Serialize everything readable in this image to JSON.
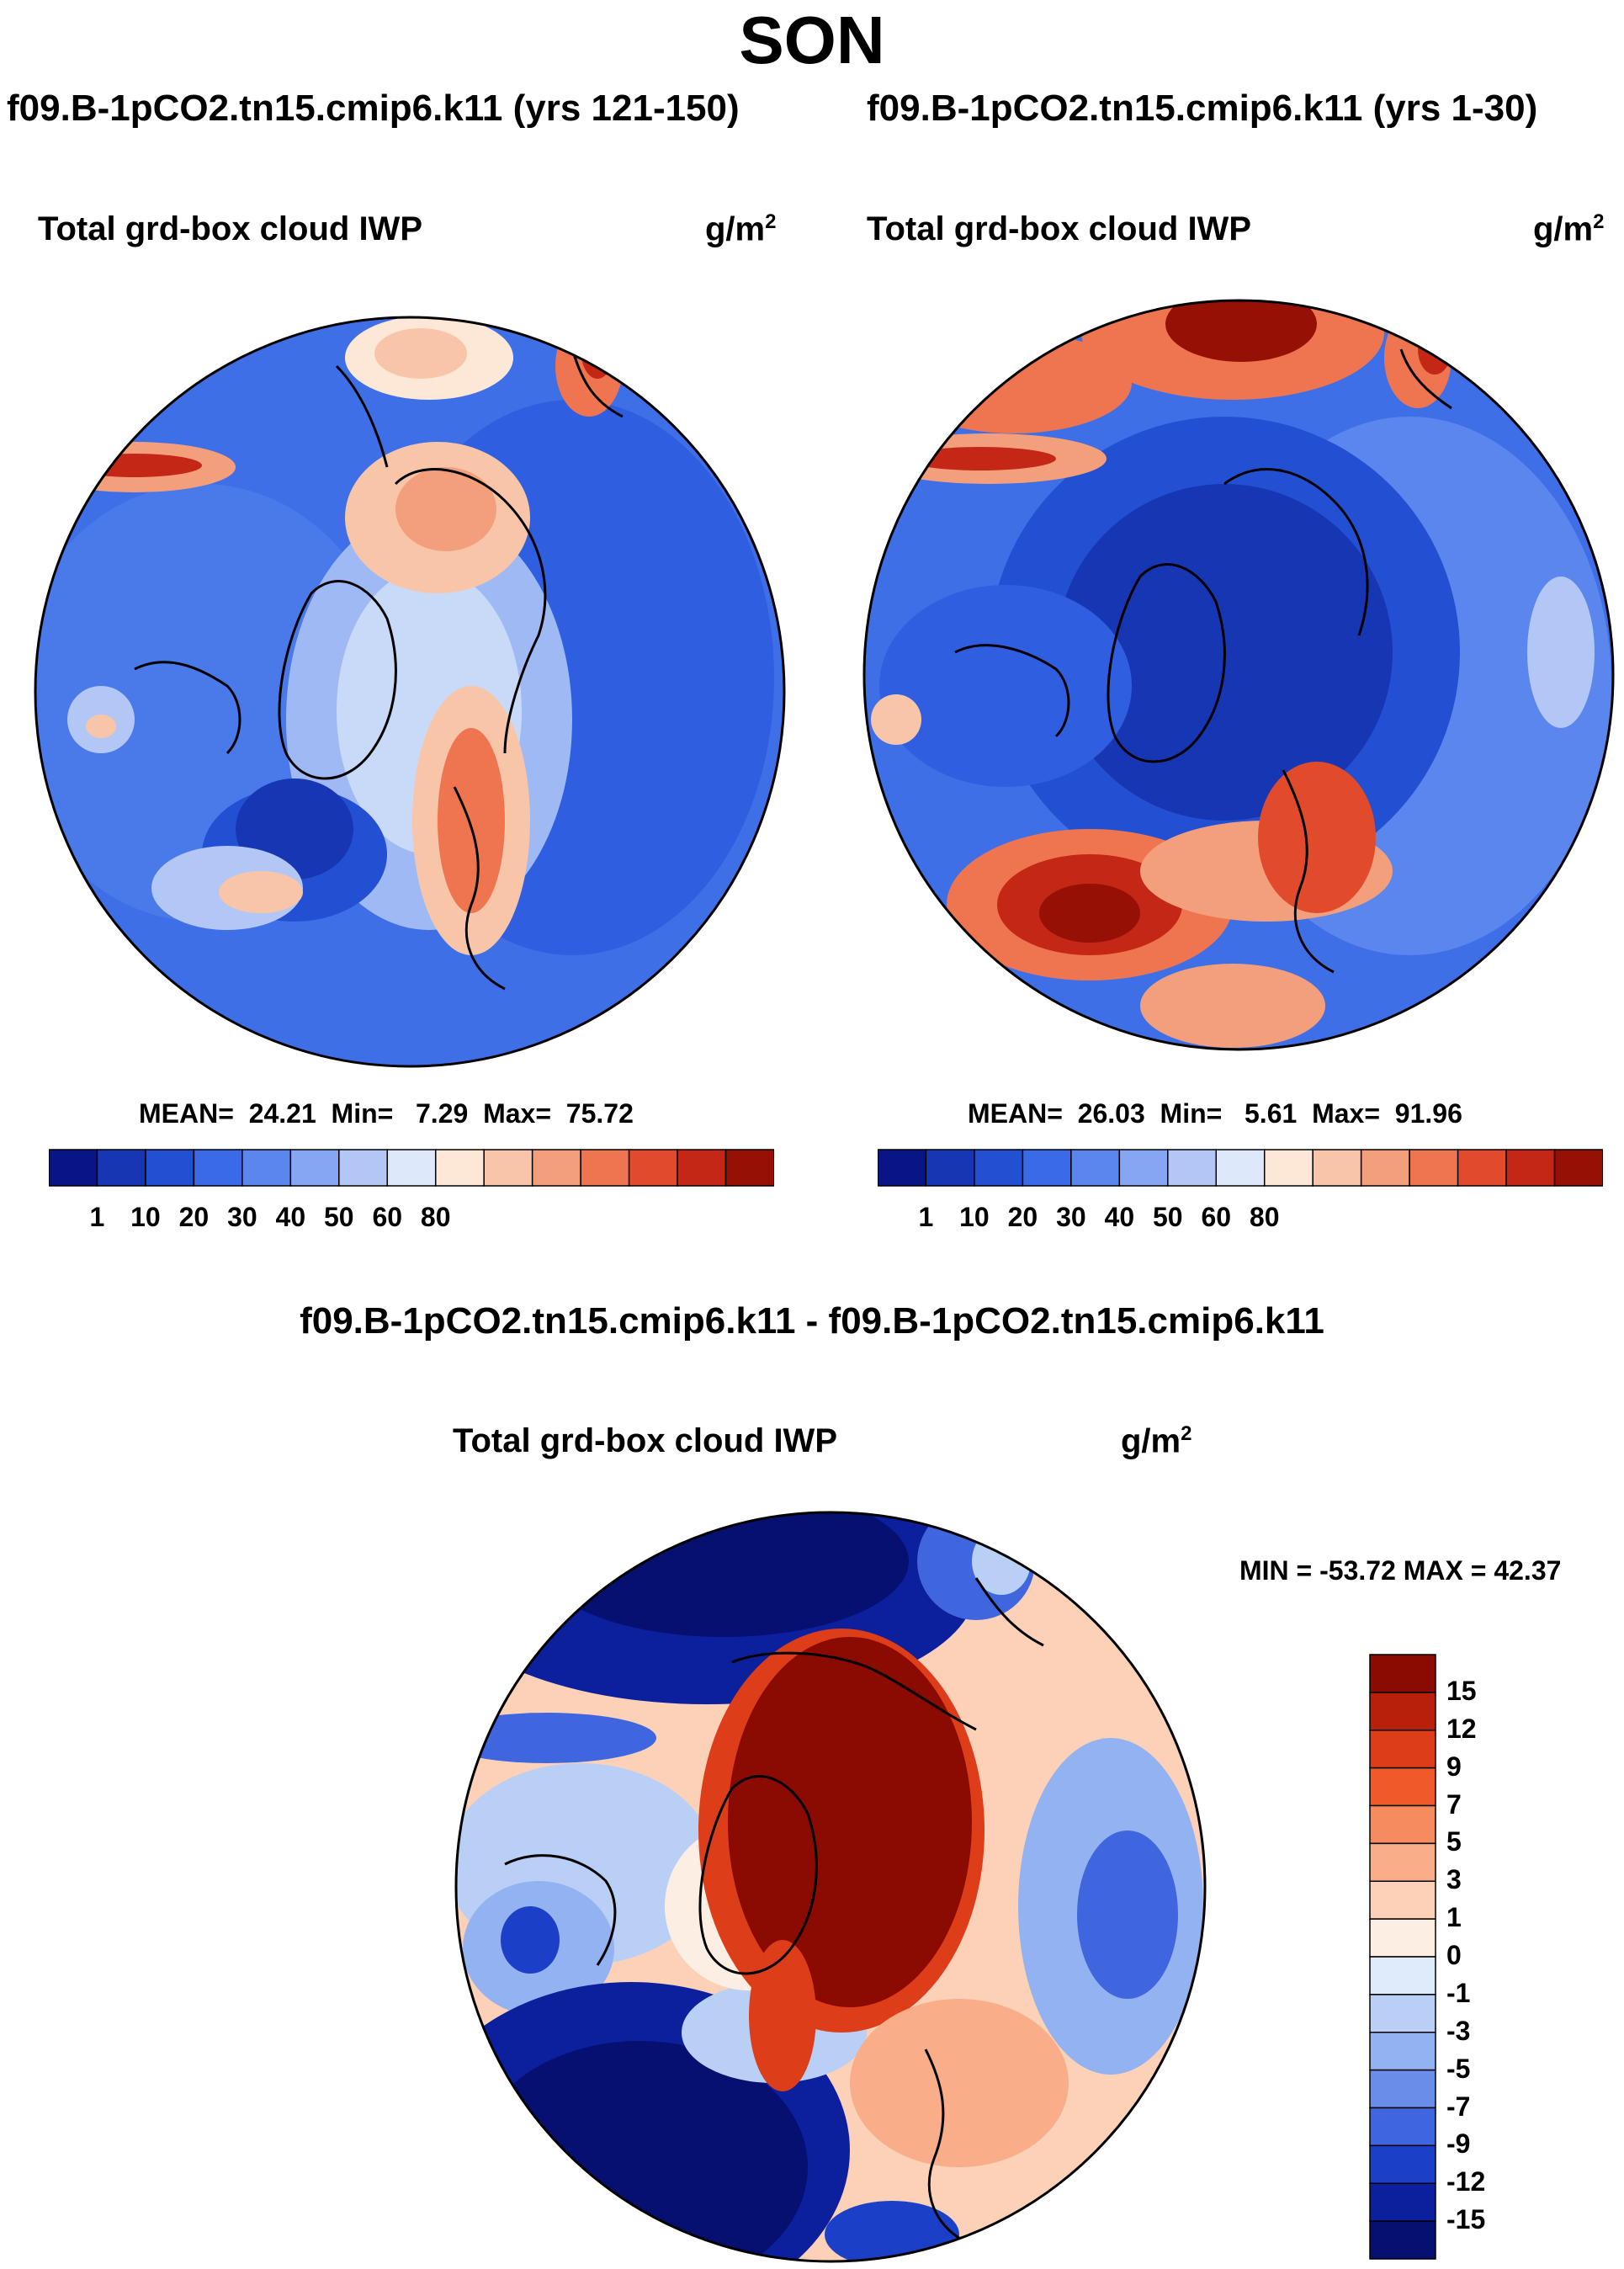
{
  "season": "SON",
  "panels": [
    {
      "case_title": "f09.B-1pCO2.tn15.cmip6.k11 (yrs 121-150)",
      "variable": "Total grd-box cloud IWP",
      "units": "g/m",
      "units_exp": "2",
      "mean_label": "MEAN=",
      "mean_value": "24.21",
      "min_label": "Min=",
      "min_value": "7.29",
      "max_label": "Max=",
      "max_value": "75.72"
    },
    {
      "case_title": "f09.B-1pCO2.tn15.cmip6.k11 (yrs 1-30)",
      "variable": "Total grd-box cloud IWP",
      "units": "g/m",
      "units_exp": "2",
      "mean_label": "MEAN=",
      "mean_value": "26.03",
      "min_label": "Min=",
      "min_value": "5.61",
      "max_label": "Max=",
      "max_value": "91.96"
    }
  ],
  "colorbar_levels": [
    "1",
    "10",
    "20",
    "30",
    "40",
    "50",
    "60",
    "80"
  ],
  "colorbar_colors": [
    "#0a1585",
    "#1736b4",
    "#2350d2",
    "#3b6ae8",
    "#5b86ee",
    "#86a5f2",
    "#b2c7f6",
    "#dde8fb",
    "#fde8d8",
    "#f9c5a8",
    "#f49f7c",
    "#ef7550",
    "#e24a2c",
    "#c52717",
    "#961006"
  ],
  "difference": {
    "title": "f09.B-1pCO2.tn15.cmip6.k11 - f09.B-1pCO2.tn15.cmip6.k11",
    "variable": "Total grd-box cloud IWP",
    "units": "g/m",
    "units_exp": "2",
    "min_max_text": "MIN = -53.72 MAX =  42.37",
    "levels": [
      "15",
      "12",
      "9",
      "7",
      "5",
      "3",
      "1",
      "0",
      "-1",
      "-3",
      "-5",
      "-7",
      "-9",
      "-12",
      "-15"
    ],
    "colors": [
      "#8b0a02",
      "#b8200c",
      "#dd3d18",
      "#f05a2a",
      "#f68b5d",
      "#f9ad88",
      "#fcd1b8",
      "#fdeee3",
      "#dfeafb",
      "#b9cff6",
      "#93b2f1",
      "#6a8de9",
      "#3f66de",
      "#1b3fc7",
      "#0c1f9c",
      "#051070"
    ]
  },
  "map_colors": {
    "land_outline": "#000000",
    "background": "#ffffff"
  }
}
